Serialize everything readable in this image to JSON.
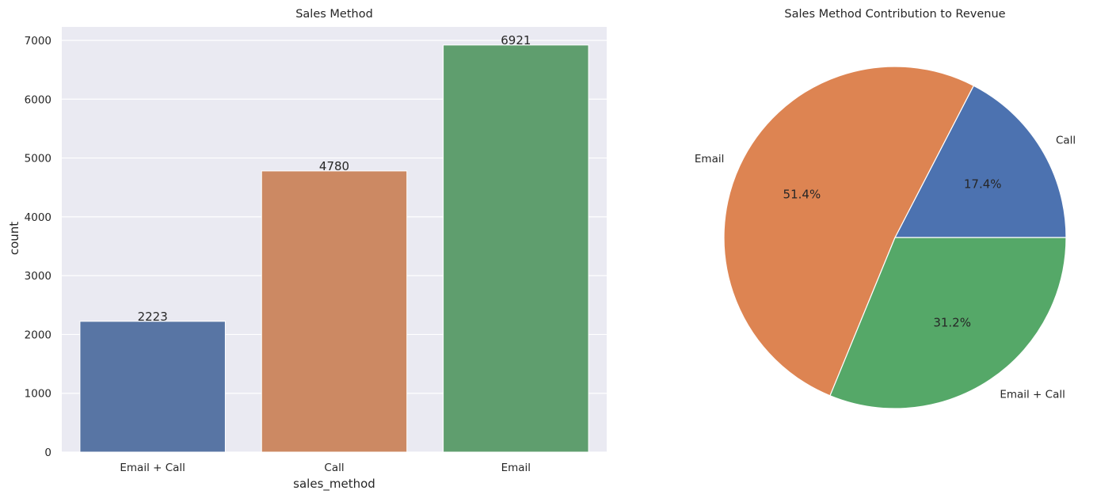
{
  "chart_data": [
    {
      "type": "bar",
      "title": "Sales Method",
      "xlabel": "sales_method",
      "ylabel": "count",
      "categories": [
        "Email + Call",
        "Call",
        "Email"
      ],
      "values": [
        2223,
        4780,
        6921
      ],
      "data_labels": [
        "2223",
        "4780",
        "6921"
      ],
      "colors": [
        "#5875a4",
        "#cc8963",
        "#5f9e6e"
      ],
      "ylim": [
        0,
        7000
      ],
      "yticks": [
        0,
        1000,
        2000,
        3000,
        4000,
        5000,
        6000,
        7000
      ],
      "ytick_labels": [
        "0",
        "1000",
        "2000",
        "3000",
        "4000",
        "5000",
        "6000",
        "7000"
      ],
      "grid": true,
      "background": "#eaeaf2"
    },
    {
      "type": "pie",
      "title": "Sales Method Contribution to Revenue",
      "slices": [
        {
          "label": "Call",
          "value": 17.4,
          "pct_label": "17.4%",
          "color": "#4c72b0"
        },
        {
          "label": "Email",
          "value": 51.4,
          "pct_label": "51.4%",
          "color": "#dd8452"
        },
        {
          "label": "Email + Call",
          "value": 31.2,
          "pct_label": "31.2%",
          "color": "#55a868"
        }
      ],
      "start_angle": 0,
      "direction": "counterclockwise"
    }
  ]
}
